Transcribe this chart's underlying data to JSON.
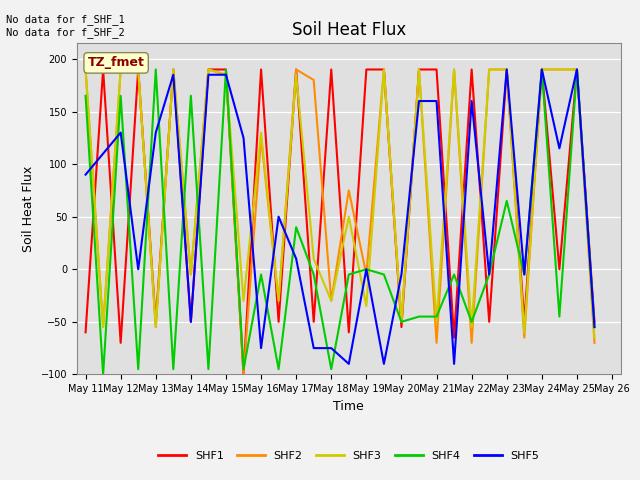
{
  "title": "Soil Heat Flux",
  "xlabel": "Time",
  "ylabel": "Soil Heat Flux",
  "ylim": [
    -100,
    215
  ],
  "yticks": [
    -100,
    -50,
    0,
    50,
    100,
    150,
    200
  ],
  "annotation_text": "No data for f_SHF_1\nNo data for f_SHF_2",
  "tz_label": "TZ_fmet",
  "plot_bg_color": "#e0e0e0",
  "fig_bg_color": "#f2f2f2",
  "series": {
    "SHF1": {
      "color": "#ff0000",
      "x": [
        0,
        1,
        2,
        3,
        4,
        5,
        6,
        7,
        8,
        9,
        10,
        11,
        12,
        13,
        14,
        15,
        16,
        17,
        18,
        19,
        20,
        21,
        22,
        23,
        24,
        25,
        26,
        27,
        28,
        29
      ],
      "y": [
        -60,
        190,
        -70,
        190,
        -50,
        190,
        -50,
        190,
        190,
        -100,
        190,
        -50,
        190,
        -50,
        190,
        -60,
        190,
        190,
        -55,
        190,
        190,
        -65,
        190,
        -50,
        190,
        -50,
        190,
        0,
        190,
        -50
      ]
    },
    "SHF2": {
      "color": "#ff8c00",
      "x": [
        0,
        1,
        2,
        3,
        4,
        5,
        6,
        7,
        8,
        9,
        10,
        11,
        12,
        13,
        14,
        15,
        16,
        17,
        18,
        19,
        20,
        21,
        22,
        23,
        24,
        25,
        26,
        27,
        28,
        29
      ],
      "y": [
        190,
        -55,
        190,
        190,
        -55,
        190,
        -5,
        190,
        185,
        -100,
        125,
        -30,
        190,
        180,
        -30,
        75,
        -5,
        190,
        -50,
        190,
        -70,
        190,
        -70,
        190,
        190,
        -65,
        190,
        190,
        190,
        -70
      ]
    },
    "SHF3": {
      "color": "#cccc00",
      "x": [
        0,
        1,
        2,
        3,
        4,
        5,
        6,
        7,
        8,
        9,
        10,
        11,
        12,
        13,
        14,
        15,
        16,
        17,
        18,
        19,
        20,
        21,
        22,
        23,
        24,
        25,
        26,
        27,
        28,
        29
      ],
      "y": [
        190,
        -55,
        190,
        190,
        -55,
        190,
        -5,
        190,
        185,
        -30,
        130,
        -30,
        185,
        10,
        -30,
        50,
        -35,
        190,
        -50,
        190,
        -50,
        190,
        -55,
        190,
        190,
        -60,
        190,
        190,
        190,
        -65
      ]
    },
    "SHF4": {
      "color": "#00cc00",
      "x": [
        0,
        1,
        2,
        3,
        4,
        5,
        6,
        7,
        8,
        9,
        10,
        11,
        12,
        13,
        14,
        15,
        16,
        17,
        18,
        19,
        20,
        21,
        22,
        23,
        24,
        25,
        26,
        27,
        28,
        29
      ],
      "y": [
        165,
        -100,
        165,
        -95,
        190,
        -95,
        165,
        -95,
        190,
        -95,
        -5,
        -95,
        40,
        -5,
        -95,
        -5,
        0,
        -5,
        -50,
        -45,
        -45,
        -5,
        -50,
        -5,
        65,
        -5,
        190,
        -45,
        190,
        -55
      ]
    },
    "SHF5": {
      "color": "#0000ff",
      "x": [
        0,
        1,
        2,
        3,
        4,
        5,
        6,
        7,
        8,
        9,
        10,
        11,
        12,
        13,
        14,
        15,
        16,
        17,
        18,
        19,
        20,
        21,
        22,
        23,
        24,
        25,
        26,
        27,
        28,
        29
      ],
      "y": [
        90,
        110,
        130,
        0,
        130,
        185,
        -50,
        185,
        185,
        125,
        -75,
        50,
        10,
        -75,
        -75,
        -90,
        0,
        -90,
        -5,
        160,
        160,
        -90,
        160,
        -5,
        190,
        -5,
        190,
        115,
        190,
        -55
      ]
    }
  },
  "xtick_labels": [
    "May 11",
    "May 12",
    "May 13",
    "May 14",
    "May 15",
    "May 16",
    "May 17",
    "May 18",
    "May 19",
    "May 20",
    "May 21",
    "May 22",
    "May 23",
    "May 24",
    "May 25",
    "May 26"
  ],
  "xtick_positions": [
    0,
    2,
    4,
    6,
    8,
    10,
    12,
    14,
    16,
    18,
    20,
    22,
    24,
    26,
    28,
    30
  ],
  "xlim": [
    -0.5,
    30.5
  ],
  "linewidth": 1.5,
  "title_fontsize": 12,
  "axis_label_fontsize": 9,
  "tick_fontsize": 7,
  "legend_fontsize": 8,
  "annot_fontsize": 7.5
}
